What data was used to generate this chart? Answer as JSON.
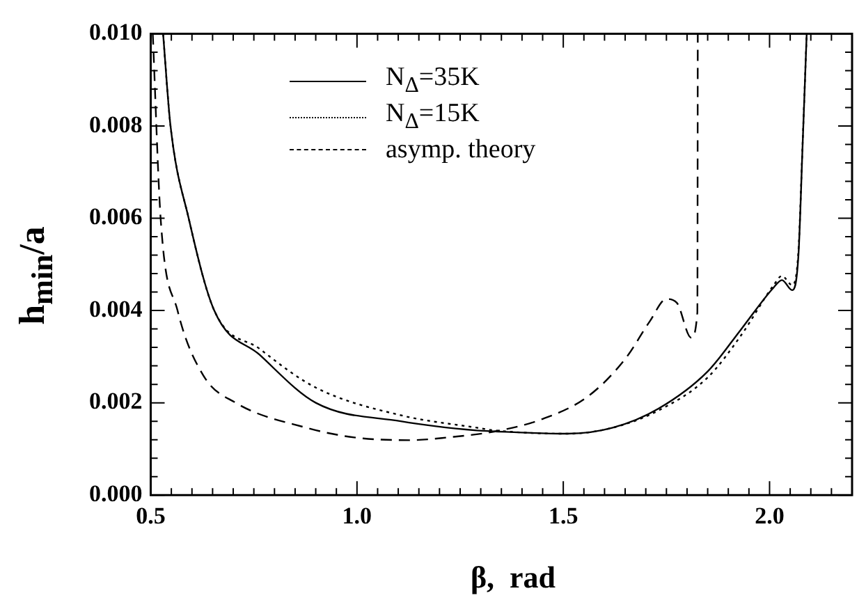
{
  "chart_data": {
    "type": "line",
    "xlabel": "β,  rad",
    "ylabel": "h$_{min}$/a",
    "xlim": [
      0.5,
      2.2
    ],
    "xticks": [
      {
        "value": 0.5,
        "label": "0.5"
      },
      {
        "value": 1.0,
        "label": "1.0"
      },
      {
        "value": 1.5,
        "label": "1.5"
      },
      {
        "value": 2.0,
        "label": "2.0"
      }
    ],
    "ylim": [
      0,
      0.01
    ],
    "yticks": [
      {
        "value": 0,
        "label": "0.000"
      },
      {
        "value": 0.002,
        "label": "0.002"
      },
      {
        "value": 0.004,
        "label": "0.004"
      },
      {
        "value": 0.006,
        "label": "0.006"
      },
      {
        "value": 0.008,
        "label": "0.008"
      },
      {
        "value": 0.01,
        "label": "0.010"
      }
    ],
    "grid": false,
    "legend": "top",
    "marker": "none",
    "series": [
      {
        "name": "N$_{Δ}$=35K",
        "color": "#000000",
        "line_style": "solid",
        "x": [
          0.53,
          0.548,
          0.592,
          0.654,
          0.764,
          0.9,
          1.106,
          1.29,
          1.335,
          1.51,
          1.62,
          1.73,
          1.85,
          1.93,
          2.01,
          2.03,
          2.055,
          2.07,
          2.08,
          2.09
        ],
        "values": [
          0.01,
          0.008,
          0.006,
          0.004,
          0.00304,
          0.002,
          0.0016,
          0.0014,
          0.00138,
          0.00133,
          0.00146,
          0.00187,
          0.00268,
          0.00358,
          0.0045,
          0.00466,
          0.00444,
          0.0052,
          0.00756,
          0.01
        ]
      },
      {
        "name": "N$_{Δ}$=15K",
        "color": "#000000",
        "line_style": "dotted",
        "x": [
          0.53,
          0.548,
          0.592,
          0.654,
          0.764,
          0.9,
          1.106,
          1.29,
          1.335,
          1.51,
          1.62,
          1.73,
          1.85,
          1.93,
          2.01,
          2.03,
          2.055,
          2.07,
          2.08,
          2.09
        ],
        "values": [
          0.01,
          0.008,
          0.006,
          0.004,
          0.00317,
          0.00233,
          0.00173,
          0.00146,
          0.0014,
          0.00133,
          0.00146,
          0.00183,
          0.00255,
          0.00345,
          0.00455,
          0.00475,
          0.00455,
          0.0053,
          0.0076,
          0.01
        ]
      },
      {
        "name": "asymp.  theory",
        "color": "#000000",
        "line_style": "dashed",
        "x": [
          0.505,
          0.524,
          0.565,
          0.627,
          0.706,
          0.877,
          0.993,
          1.13,
          1.22,
          1.335,
          1.45,
          1.56,
          1.65,
          1.71,
          1.75,
          1.775,
          1.81,
          1.825,
          1.826
        ],
        "values": [
          0.01,
          0.006,
          0.004,
          0.0026,
          0.002,
          0.00146,
          0.00125,
          0.00119,
          0.00125,
          0.00138,
          0.00165,
          0.00214,
          0.00295,
          0.00377,
          0.00425,
          0.00417,
          0.00341,
          0.00396,
          0.01
        ]
      }
    ]
  }
}
